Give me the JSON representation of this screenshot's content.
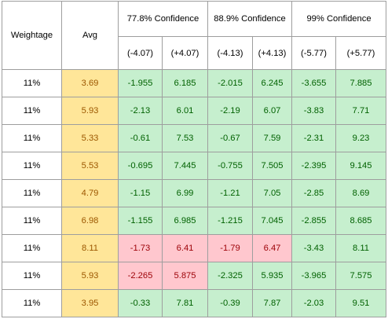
{
  "header": {
    "weightage": "Weightage",
    "avg": "Avg",
    "groups": [
      "77.8% Confidence",
      "88.9% Confidence",
      "99% Confidence"
    ],
    "bounds": [
      "(-4.07)",
      "(+4.07)",
      "(-4.13)",
      "(+4.13)",
      "(-5.77)",
      "(+5.77)"
    ]
  },
  "colors": {
    "avg_fill": "#ffe699",
    "avg_text": "#9c5700",
    "good_fill": "#c6efce",
    "good_text": "#006100",
    "bad_fill": "#ffc7ce",
    "bad_text": "#9c0006"
  },
  "rows": [
    {
      "weightage": "11%",
      "avg": "3.69",
      "v": [
        "-1.955",
        "6.185",
        "-2.015",
        "6.245",
        "-3.655",
        "7.885"
      ],
      "s": [
        "g",
        "g",
        "g",
        "g",
        "g",
        "g"
      ]
    },
    {
      "weightage": "11%",
      "avg": "5.93",
      "v": [
        "-2.13",
        "6.01",
        "-2.19",
        "6.07",
        "-3.83",
        "7.71"
      ],
      "s": [
        "g",
        "g",
        "g",
        "g",
        "g",
        "g"
      ]
    },
    {
      "weightage": "11%",
      "avg": "5.33",
      "v": [
        "-0.61",
        "7.53",
        "-0.67",
        "7.59",
        "-2.31",
        "9.23"
      ],
      "s": [
        "g",
        "g",
        "g",
        "g",
        "g",
        "g"
      ]
    },
    {
      "weightage": "11%",
      "avg": "5.53",
      "v": [
        "-0.695",
        "7.445",
        "-0.755",
        "7.505",
        "-2.395",
        "9.145"
      ],
      "s": [
        "g",
        "g",
        "g",
        "g",
        "g",
        "g"
      ]
    },
    {
      "weightage": "11%",
      "avg": "4.79",
      "v": [
        "-1.15",
        "6.99",
        "-1.21",
        "7.05",
        "-2.85",
        "8.69"
      ],
      "s": [
        "g",
        "g",
        "g",
        "g",
        "g",
        "g"
      ]
    },
    {
      "weightage": "11%",
      "avg": "6.98",
      "v": [
        "-1.155",
        "6.985",
        "-1.215",
        "7.045",
        "-2.855",
        "8.685"
      ],
      "s": [
        "g",
        "g",
        "g",
        "g",
        "g",
        "g"
      ]
    },
    {
      "weightage": "11%",
      "avg": "8.11",
      "v": [
        "-1.73",
        "6.41",
        "-1.79",
        "6.47",
        "-3.43",
        "8.11"
      ],
      "s": [
        "r",
        "r",
        "r",
        "r",
        "g",
        "g"
      ]
    },
    {
      "weightage": "11%",
      "avg": "5.93",
      "v": [
        "-2.265",
        "5.875",
        "-2.325",
        "5.935",
        "-3.965",
        "7.575"
      ],
      "s": [
        "r",
        "r",
        "g",
        "g",
        "g",
        "g"
      ]
    },
    {
      "weightage": "11%",
      "avg": "3.95",
      "v": [
        "-0.33",
        "7.81",
        "-0.39",
        "7.87",
        "-2.03",
        "9.51"
      ],
      "s": [
        "g",
        "g",
        "g",
        "g",
        "g",
        "g"
      ]
    }
  ]
}
